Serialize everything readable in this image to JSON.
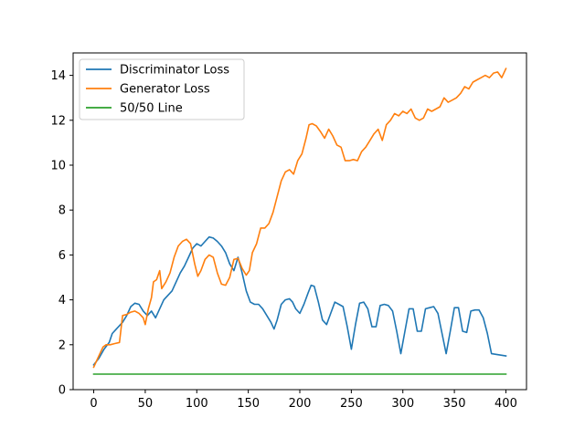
{
  "chart_data": {
    "type": "line",
    "title": "",
    "xlabel": "",
    "ylabel": "",
    "xlim": [
      -20,
      420
    ],
    "ylim": [
      0,
      15
    ],
    "xticks": [
      0,
      50,
      100,
      150,
      200,
      250,
      300,
      350,
      400
    ],
    "yticks": [
      0,
      2,
      4,
      6,
      8,
      10,
      12,
      14
    ],
    "grid": false,
    "legend": {
      "position": "top-left",
      "entries": [
        "Discriminator Loss",
        "Generator Loss",
        "50/50 Line"
      ]
    },
    "series": [
      {
        "name": "Discriminator Loss",
        "color": "#1f77b4",
        "points": [
          [
            0,
            1.1
          ],
          [
            5,
            1.4
          ],
          [
            10,
            1.8
          ],
          [
            15,
            2.1
          ],
          [
            18,
            2.5
          ],
          [
            22,
            2.7
          ],
          [
            28,
            3.0
          ],
          [
            32,
            3.3
          ],
          [
            36,
            3.7
          ],
          [
            40,
            3.85
          ],
          [
            44,
            3.8
          ],
          [
            48,
            3.5
          ],
          [
            52,
            3.3
          ],
          [
            56,
            3.5
          ],
          [
            60,
            3.2
          ],
          [
            64,
            3.6
          ],
          [
            68,
            4.0
          ],
          [
            72,
            4.2
          ],
          [
            76,
            4.4
          ],
          [
            80,
            4.8
          ],
          [
            84,
            5.2
          ],
          [
            88,
            5.5
          ],
          [
            92,
            5.9
          ],
          [
            96,
            6.3
          ],
          [
            100,
            6.5
          ],
          [
            104,
            6.4
          ],
          [
            108,
            6.6
          ],
          [
            112,
            6.8
          ],
          [
            116,
            6.75
          ],
          [
            120,
            6.6
          ],
          [
            124,
            6.4
          ],
          [
            128,
            6.1
          ],
          [
            132,
            5.6
          ],
          [
            136,
            5.3
          ],
          [
            140,
            5.9
          ],
          [
            144,
            5.2
          ],
          [
            148,
            4.4
          ],
          [
            152,
            3.9
          ],
          [
            156,
            3.8
          ],
          [
            160,
            3.8
          ],
          [
            164,
            3.6
          ],
          [
            168,
            3.3
          ],
          [
            172,
            3.0
          ],
          [
            175,
            2.7
          ],
          [
            178,
            3.1
          ],
          [
            182,
            3.8
          ],
          [
            186,
            4.0
          ],
          [
            190,
            4.05
          ],
          [
            193,
            3.9
          ],
          [
            196,
            3.6
          ],
          [
            200,
            3.4
          ],
          [
            204,
            3.8
          ],
          [
            208,
            4.3
          ],
          [
            211,
            4.65
          ],
          [
            214,
            4.6
          ],
          [
            218,
            3.9
          ],
          [
            222,
            3.1
          ],
          [
            226,
            2.9
          ],
          [
            230,
            3.4
          ],
          [
            234,
            3.9
          ],
          [
            238,
            3.8
          ],
          [
            242,
            3.7
          ],
          [
            246,
            2.8
          ],
          [
            250,
            1.8
          ],
          [
            254,
            2.9
          ],
          [
            258,
            3.85
          ],
          [
            262,
            3.9
          ],
          [
            266,
            3.6
          ],
          [
            270,
            2.8
          ],
          [
            274,
            2.8
          ],
          [
            278,
            3.75
          ],
          [
            282,
            3.8
          ],
          [
            286,
            3.75
          ],
          [
            290,
            3.5
          ],
          [
            294,
            2.6
          ],
          [
            298,
            1.6
          ],
          [
            302,
            2.6
          ],
          [
            306,
            3.6
          ],
          [
            310,
            3.6
          ],
          [
            314,
            2.6
          ],
          [
            318,
            2.6
          ],
          [
            322,
            3.6
          ],
          [
            326,
            3.65
          ],
          [
            330,
            3.7
          ],
          [
            334,
            3.4
          ],
          [
            338,
            2.5
          ],
          [
            342,
            1.6
          ],
          [
            346,
            2.6
          ],
          [
            350,
            3.65
          ],
          [
            354,
            3.65
          ],
          [
            358,
            2.6
          ],
          [
            362,
            2.55
          ],
          [
            366,
            3.5
          ],
          [
            370,
            3.55
          ],
          [
            374,
            3.55
          ],
          [
            378,
            3.2
          ],
          [
            382,
            2.5
          ],
          [
            386,
            1.6
          ],
          [
            400,
            1.5
          ]
        ]
      },
      {
        "name": "Generator Loss",
        "color": "#ff7f0e",
        "points": [
          [
            0,
            1.0
          ],
          [
            3,
            1.3
          ],
          [
            6,
            1.6
          ],
          [
            9,
            1.9
          ],
          [
            12,
            2.0
          ],
          [
            16,
            2.0
          ],
          [
            20,
            2.05
          ],
          [
            25,
            2.1
          ],
          [
            28,
            3.3
          ],
          [
            32,
            3.35
          ],
          [
            36,
            3.45
          ],
          [
            40,
            3.5
          ],
          [
            44,
            3.4
          ],
          [
            48,
            3.2
          ],
          [
            50,
            2.9
          ],
          [
            53,
            3.6
          ],
          [
            56,
            4.1
          ],
          [
            58,
            4.8
          ],
          [
            61,
            4.9
          ],
          [
            64,
            5.3
          ],
          [
            66,
            4.5
          ],
          [
            70,
            4.8
          ],
          [
            74,
            5.2
          ],
          [
            78,
            5.9
          ],
          [
            82,
            6.4
          ],
          [
            86,
            6.6
          ],
          [
            90,
            6.7
          ],
          [
            94,
            6.5
          ],
          [
            98,
            5.6
          ],
          [
            101,
            5.05
          ],
          [
            104,
            5.3
          ],
          [
            108,
            5.8
          ],
          [
            112,
            6.0
          ],
          [
            116,
            5.9
          ],
          [
            120,
            5.2
          ],
          [
            124,
            4.7
          ],
          [
            128,
            4.65
          ],
          [
            132,
            5.0
          ],
          [
            136,
            5.8
          ],
          [
            140,
            5.85
          ],
          [
            144,
            5.4
          ],
          [
            148,
            5.1
          ],
          [
            151,
            5.3
          ],
          [
            154,
            6.1
          ],
          [
            158,
            6.5
          ],
          [
            162,
            7.2
          ],
          [
            166,
            7.2
          ],
          [
            170,
            7.4
          ],
          [
            174,
            7.9
          ],
          [
            178,
            8.6
          ],
          [
            182,
            9.3
          ],
          [
            186,
            9.7
          ],
          [
            190,
            9.8
          ],
          [
            194,
            9.6
          ],
          [
            198,
            10.2
          ],
          [
            202,
            10.5
          ],
          [
            206,
            11.2
          ],
          [
            209,
            11.8
          ],
          [
            212,
            11.85
          ],
          [
            216,
            11.75
          ],
          [
            220,
            11.5
          ],
          [
            224,
            11.2
          ],
          [
            228,
            11.6
          ],
          [
            232,
            11.3
          ],
          [
            236,
            10.9
          ],
          [
            240,
            10.8
          ],
          [
            244,
            10.2
          ],
          [
            248,
            10.2
          ],
          [
            252,
            10.25
          ],
          [
            256,
            10.2
          ],
          [
            260,
            10.6
          ],
          [
            264,
            10.8
          ],
          [
            268,
            11.1
          ],
          [
            272,
            11.4
          ],
          [
            276,
            11.6
          ],
          [
            280,
            11.1
          ],
          [
            284,
            11.8
          ],
          [
            288,
            12.0
          ],
          [
            292,
            12.3
          ],
          [
            296,
            12.2
          ],
          [
            300,
            12.4
          ],
          [
            304,
            12.3
          ],
          [
            308,
            12.5
          ],
          [
            312,
            12.1
          ],
          [
            316,
            12.0
          ],
          [
            320,
            12.1
          ],
          [
            324,
            12.5
          ],
          [
            328,
            12.4
          ],
          [
            332,
            12.5
          ],
          [
            336,
            12.6
          ],
          [
            340,
            13.0
          ],
          [
            344,
            12.8
          ],
          [
            348,
            12.9
          ],
          [
            352,
            13.0
          ],
          [
            356,
            13.2
          ],
          [
            360,
            13.5
          ],
          [
            364,
            13.4
          ],
          [
            368,
            13.7
          ],
          [
            372,
            13.8
          ],
          [
            376,
            13.9
          ],
          [
            380,
            14.0
          ],
          [
            384,
            13.9
          ],
          [
            388,
            14.1
          ],
          [
            392,
            14.15
          ],
          [
            396,
            13.9
          ],
          [
            400,
            14.3
          ]
        ]
      },
      {
        "name": "50/50 Line",
        "color": "#2ca02c",
        "points": [
          [
            0,
            0.693
          ],
          [
            400,
            0.693
          ]
        ]
      }
    ]
  }
}
